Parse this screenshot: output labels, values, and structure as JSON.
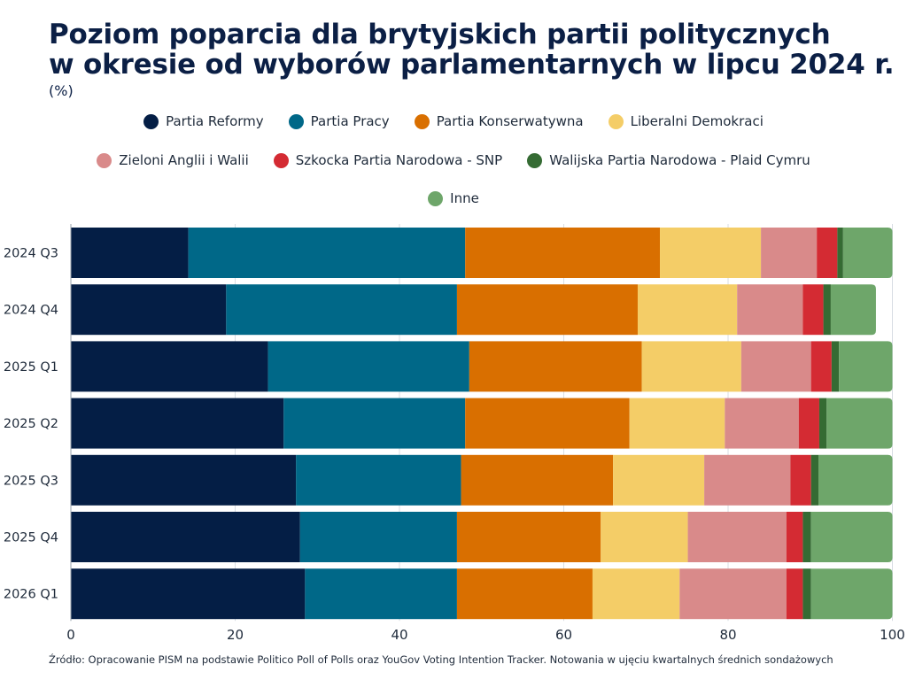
{
  "chart_data": {
    "type": "bar",
    "orientation": "horizontal",
    "stacked": true,
    "title": "Poziom poparcia dla brytyjskich partii politycznych w okresie od wyborów parlamentarnych w lipcu 2024 r.",
    "title_lines": [
      "Poziom poparcia dla brytyjskich partii politycznych",
      "w okresie od wyborów parlamentarnych w lipcu 2024 r."
    ],
    "subtitle": "(%)",
    "xlabel": "",
    "ylabel": "",
    "xlim": [
      0,
      100
    ],
    "xticks": [
      0,
      20,
      40,
      60,
      80,
      100
    ],
    "grid": true,
    "legend_position": "top",
    "categories": [
      "2024 Q3",
      "2024 Q4",
      "2025 Q1",
      "2025 Q2",
      "2025 Q3",
      "2025 Q4",
      "2026 Q1"
    ],
    "series": [
      {
        "name": "Partia Reformy",
        "color": "#041e45",
        "values": [
          14.3,
          18.9,
          24.0,
          25.9,
          27.4,
          27.9,
          28.5
        ]
      },
      {
        "name": "Partia Pracy",
        "color": "#006888",
        "values": [
          33.7,
          28.1,
          24.5,
          22.1,
          20.1,
          19.1,
          18.5
        ]
      },
      {
        "name": "Partia Konserwatywna",
        "color": "#d96f00",
        "values": [
          23.7,
          22.0,
          21.0,
          20.0,
          18.5,
          17.5,
          16.5
        ]
      },
      {
        "name": "Liberalni Demokraci",
        "color": "#f4cd67",
        "values": [
          12.3,
          12.1,
          12.1,
          11.6,
          11.1,
          10.6,
          10.6
        ]
      },
      {
        "name": "Zieloni Anglii i Walii",
        "color": "#d98a8a",
        "values": [
          6.8,
          8.0,
          8.5,
          9.0,
          10.5,
          12.0,
          13.0
        ]
      },
      {
        "name": "Szkocka Partia Narodowa - SNP",
        "color": "#d42b33",
        "values": [
          2.5,
          2.5,
          2.5,
          2.5,
          2.5,
          2.0,
          2.0
        ]
      },
      {
        "name": "Walijska Partia Narodowa - Plaid Cymru",
        "color": "#356b33",
        "values": [
          0.7,
          0.9,
          0.9,
          0.9,
          0.9,
          1.0,
          1.0
        ]
      },
      {
        "name": "Inne",
        "color": "#6ea66a",
        "values": [
          6.0,
          5.5,
          6.5,
          8.0,
          9.0,
          9.9,
          9.9
        ]
      }
    ],
    "legend_rows": [
      [
        0,
        1,
        2,
        3
      ],
      [
        4,
        5,
        6
      ],
      [
        7
      ]
    ]
  },
  "source": "Źródło: Opracowanie PISM na podstawie Politico Poll of Polls oraz YouGov Voting Intention Tracker. Notowania w ujęciu kwartalnych średnich sondażowych"
}
